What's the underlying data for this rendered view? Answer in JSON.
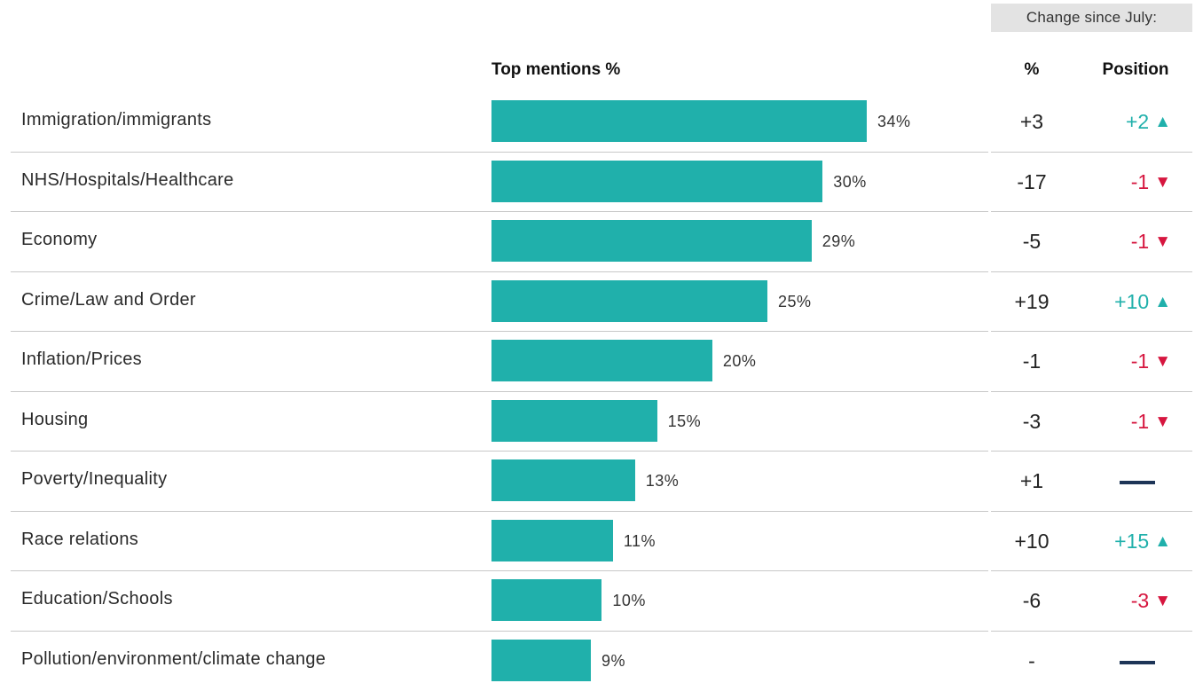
{
  "header": {
    "change_since": "Change since July:",
    "top_mentions": "Top mentions %",
    "pct": "%",
    "position": "Position"
  },
  "colors": {
    "bar": "#20b0ab",
    "up": "#20b0ab",
    "down": "#d6163f",
    "flat": "#1d3557"
  },
  "chart_data": {
    "type": "bar",
    "orientation": "horizontal",
    "title": "",
    "xlabel": "Top mentions %",
    "xlim": [
      0,
      34
    ],
    "categories": [
      "Immigration/immigrants",
      "NHS/Hospitals/Healthcare",
      "Economy",
      "Crime/Law and Order",
      "Inflation/Prices",
      "Housing",
      "Poverty/Inequality",
      "Race relations",
      "Education/Schools",
      "Pollution/environment/climate change"
    ],
    "values": [
      34,
      30,
      29,
      25,
      20,
      15,
      13,
      11,
      10,
      9
    ],
    "value_labels": [
      "34%",
      "30%",
      "29%",
      "25%",
      "20%",
      "15%",
      "13%",
      "11%",
      "10%",
      "9%"
    ],
    "change_pct": [
      "+3",
      "-17",
      "-5",
      "+19",
      "-1",
      "-3",
      "+1",
      "+10",
      "-6",
      "-"
    ],
    "change_position": [
      "+2",
      "-1",
      "-1",
      "+10",
      "-1",
      "-1",
      "",
      "+15",
      "-3",
      ""
    ],
    "position_direction": [
      "up",
      "down",
      "down",
      "up",
      "down",
      "down",
      "flat",
      "up",
      "down",
      "flat"
    ]
  }
}
